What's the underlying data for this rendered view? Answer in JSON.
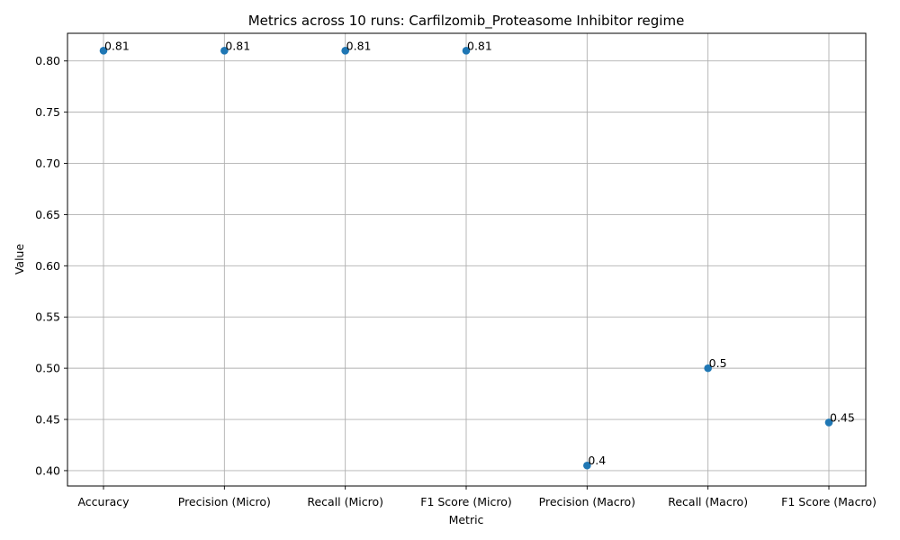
{
  "chart_data": {
    "type": "scatter",
    "title": "Metrics across 10 runs: Carfilzomib_Proteasome Inhibitor regime",
    "xlabel": "Metric",
    "ylabel": "Value",
    "categories": [
      "Accuracy",
      "Precision (Micro)",
      "Recall (Micro)",
      "F1 Score (Micro)",
      "Precision (Macro)",
      "Recall (Macro)",
      "F1 Score (Macro)"
    ],
    "values": [
      0.81,
      0.81,
      0.81,
      0.81,
      0.405,
      0.5,
      0.447
    ],
    "data_labels": [
      "0.81",
      "0.81",
      "0.81",
      "0.81",
      "0.4",
      "0.5",
      "0.45"
    ],
    "ylim": [
      0.385,
      0.827
    ],
    "yticks": [
      0.4,
      0.45,
      0.5,
      0.55,
      0.6,
      0.65,
      0.7,
      0.75,
      0.8
    ],
    "ytick_labels": [
      "0.40",
      "0.45",
      "0.50",
      "0.55",
      "0.60",
      "0.65",
      "0.70",
      "0.75",
      "0.80"
    ],
    "grid": true,
    "marker_color": "#1f77b4"
  }
}
